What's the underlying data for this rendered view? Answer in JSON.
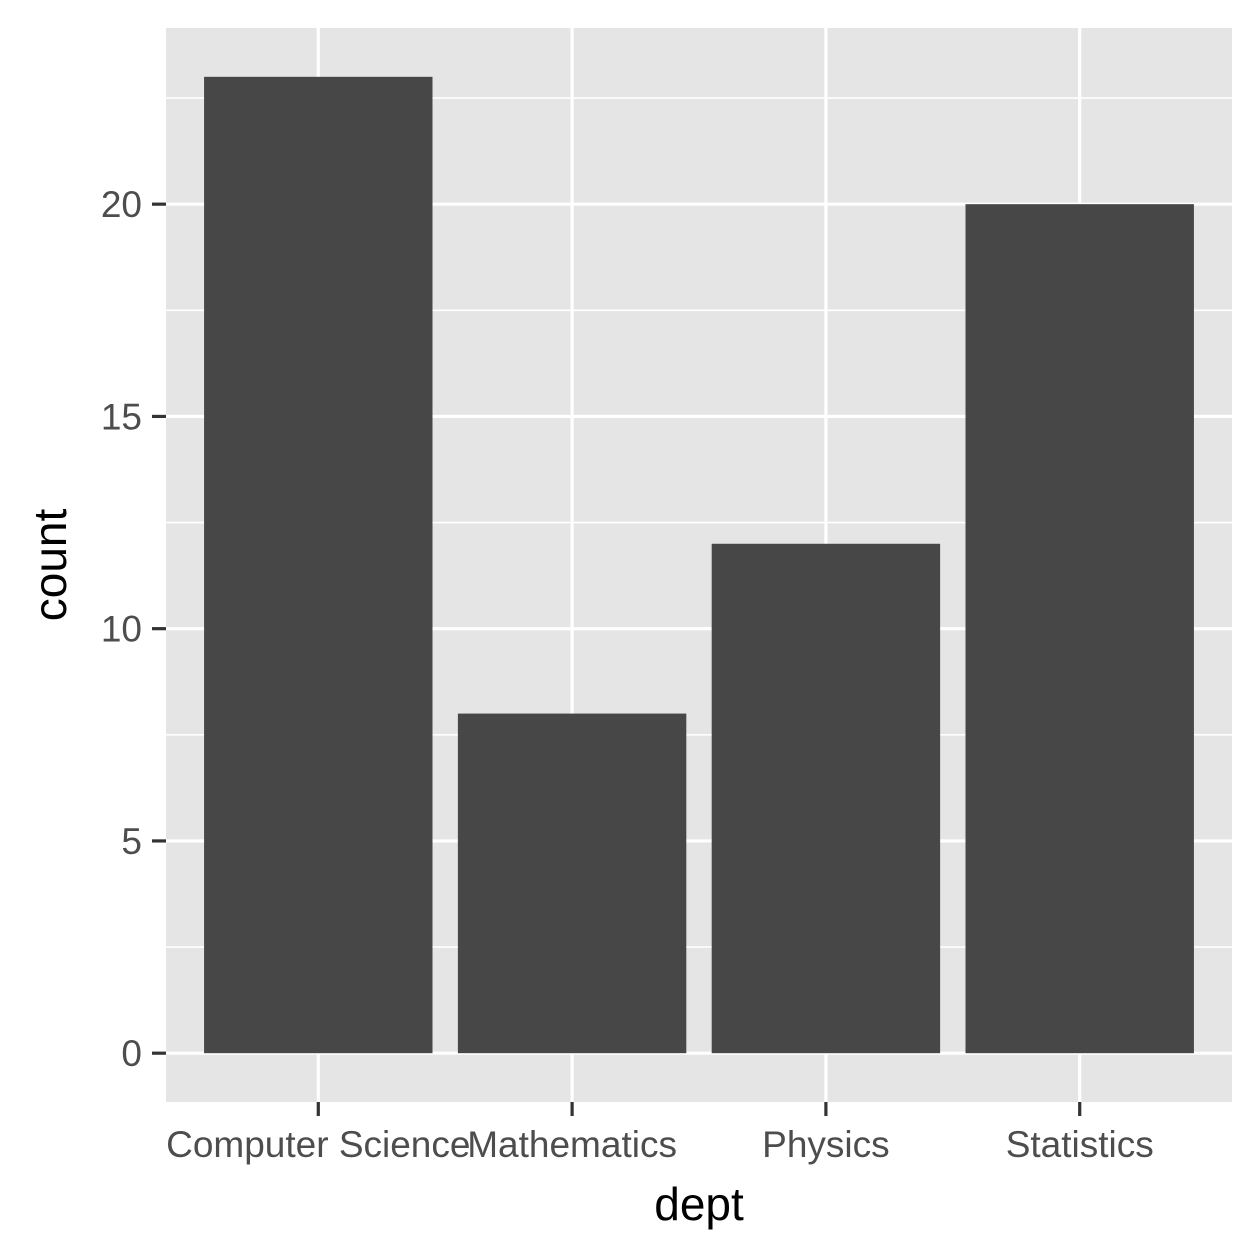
{
  "chart_data": {
    "type": "bar",
    "categories": [
      "Computer Science",
      "Mathematics",
      "Physics",
      "Statistics"
    ],
    "values": [
      23,
      8,
      12,
      20
    ],
    "title": "",
    "xlabel": "dept",
    "ylabel": "count",
    "ylim": [
      -1.15,
      24.15
    ],
    "y_ticks": [
      0,
      5,
      10,
      15,
      20
    ],
    "grid": true,
    "colors": {
      "panel_background": "#e5e5e5",
      "grid_line": "#ffffff",
      "bar_fill": "#474747",
      "tick_mark": "#333333",
      "tick_label": "#4d4d4d",
      "axis_title": "#000000"
    }
  }
}
